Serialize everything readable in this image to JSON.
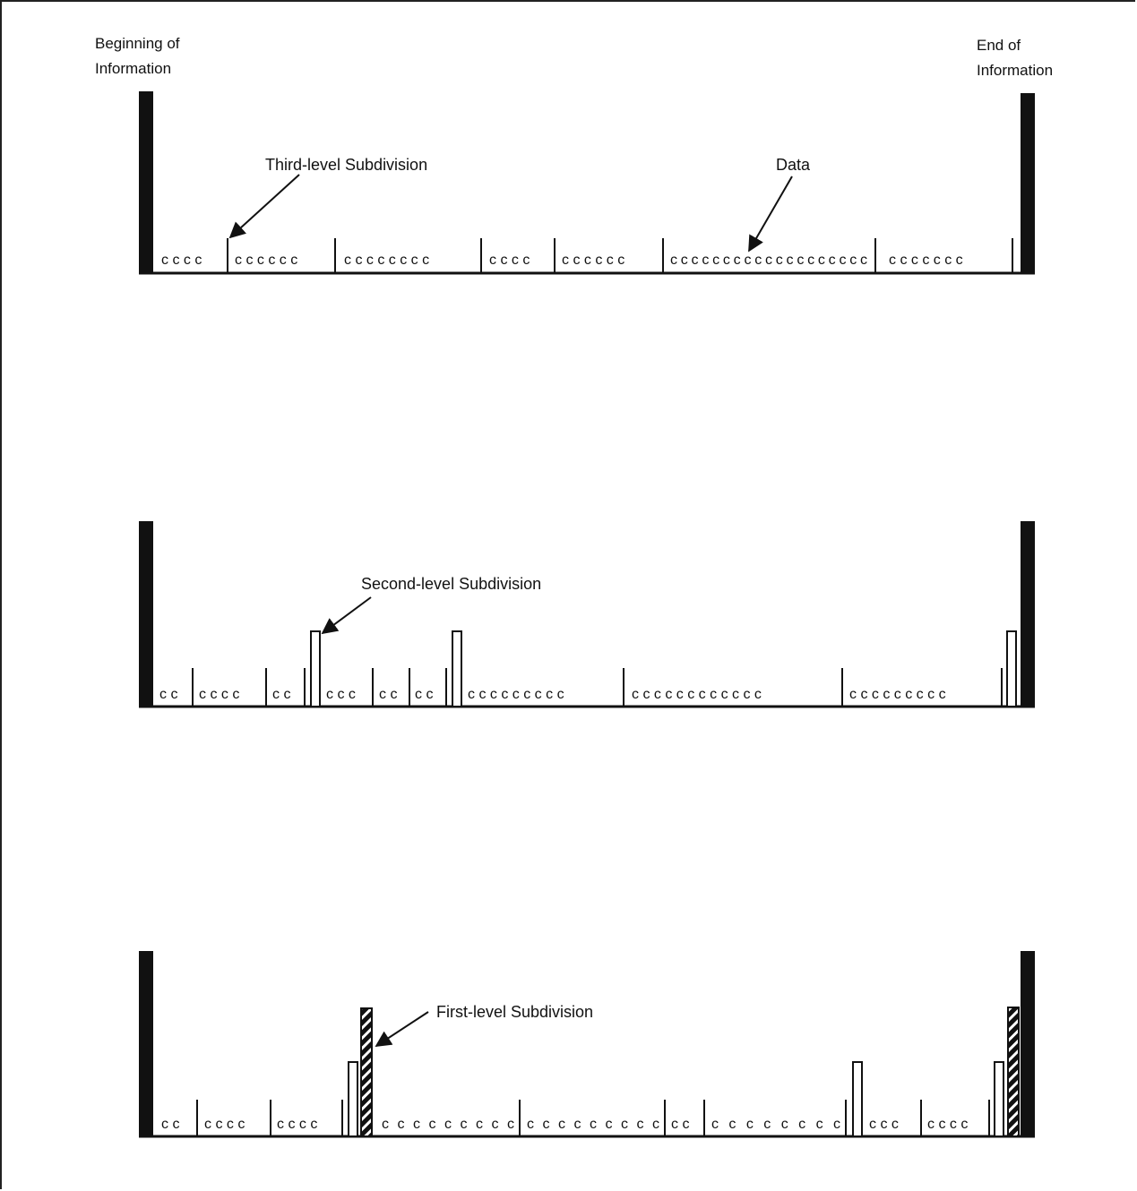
{
  "labels": {
    "beginning": [
      "Beginning of",
      "Information"
    ],
    "end": [
      "End of",
      "Information"
    ]
  },
  "annotations": {
    "third_level": "Third-level Subdivision",
    "data": "Data",
    "second_level": "Second-level Subdivision",
    "first_level": "First-level Subdivision"
  },
  "rows": [
    {
      "segments": [
        "c c c c",
        "c c c c c c",
        "c c c c c c c c",
        "c c c c",
        "c c c c c c",
        "c c c c c c c c c c c c c c c c c c c",
        "c c c c c c c"
      ]
    },
    {
      "segments": [
        "c c",
        "c c c c",
        "c c",
        "c c c",
        "c c",
        "c c",
        "c c c c c c c c c",
        "c c c c c c c c c c c c",
        "c c c c c c c c c"
      ]
    },
    {
      "segments": [
        "c c",
        "c c c c",
        "c c c c",
        "c c c c c c c c c",
        "c c c c c c c c c",
        "c c",
        "c c c c c c c c",
        "c c c",
        "c c c c"
      ]
    }
  ],
  "colors": {
    "ink": "#111111",
    "paper": "#ffffff"
  }
}
